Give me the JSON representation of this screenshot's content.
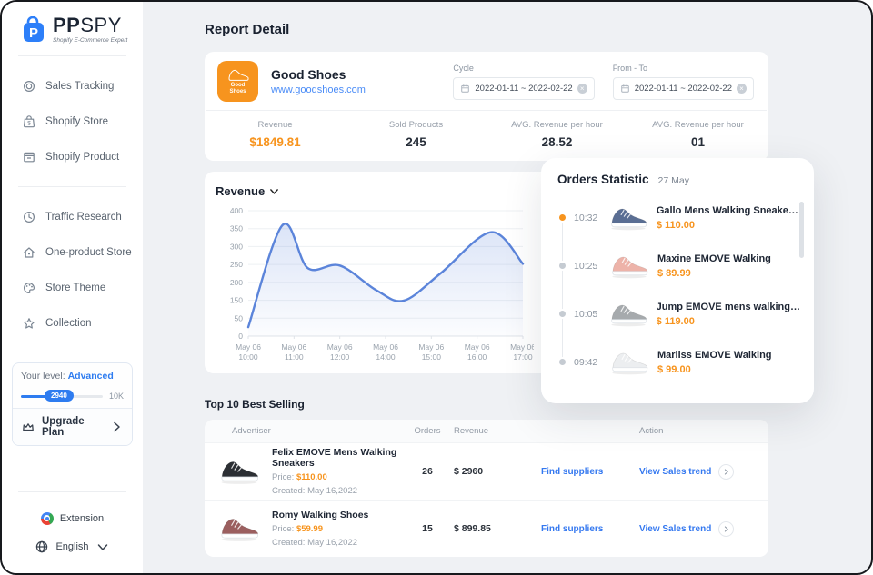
{
  "app": {
    "name_bold": "PP",
    "name_light": "SPY",
    "tagline": "Shopify E-Commerce Expert"
  },
  "colors": {
    "brand_blue": "#2e7cf0",
    "brand_orange": "#f7941e",
    "link_blue": "#3478f0",
    "chart_line": "#5b84da",
    "main_bg": "#eff1f4"
  },
  "sidebar": {
    "menu": [
      {
        "label": "Sales Tracking",
        "icon": "target-icon"
      },
      {
        "label": "Shopify Store",
        "icon": "store-bag-icon"
      },
      {
        "label": "Shopify Product",
        "icon": "product-box-icon"
      },
      {
        "label": "Traffic Research",
        "icon": "clock-icon"
      },
      {
        "label": "One-product Store",
        "icon": "home-icon"
      },
      {
        "label": "Store Theme",
        "icon": "palette-icon"
      },
      {
        "label": "Collection",
        "icon": "star-icon"
      }
    ],
    "level": {
      "label": "Your level:",
      "value": "Advanced",
      "progress_badge": "2940",
      "progress_max": "10K",
      "upgrade_label": "Upgrade Plan"
    },
    "footer": {
      "extension_label": "Extension",
      "language_label": "English"
    }
  },
  "header": {
    "title": "Report Detail"
  },
  "store_card": {
    "store_name": "Good Shoes",
    "store_url": "www.goodshoes.com",
    "logo_line1": "Good",
    "logo_line2": "Shoes",
    "filters": [
      {
        "label": "Cycle",
        "value": "2022-01-11  ~  2022-02-22"
      },
      {
        "label": "From - To",
        "value": "2022-01-11  ~  2022-02-22"
      }
    ],
    "stats": [
      {
        "label": "Revenue",
        "value": "$1849.81"
      },
      {
        "label": "Sold Products",
        "value": "245"
      },
      {
        "label": "AVG. Revenue per hour",
        "value": "28.52"
      },
      {
        "label": "AVG. Revenue per hour",
        "value": "01"
      }
    ]
  },
  "chart_data": {
    "type": "area",
    "title": "Revenue",
    "series_name": "Revenue",
    "x_labels": [
      [
        "May 06",
        "10:00"
      ],
      [
        "May 06",
        "11:00"
      ],
      [
        "May 06",
        "12:00"
      ],
      [
        "May 06",
        "14:00"
      ],
      [
        "May 06",
        "15:00"
      ],
      [
        "May 06",
        "16:00"
      ],
      [
        "May 06",
        "17:00"
      ]
    ],
    "y_ticks": [
      0,
      50,
      150,
      200,
      250,
      300,
      350,
      400
    ],
    "points": [
      [
        0,
        25
      ],
      [
        0.75,
        360
      ],
      [
        1.3,
        240
      ],
      [
        2,
        247
      ],
      [
        2.8,
        178
      ],
      [
        3.4,
        148
      ],
      [
        4.2,
        225
      ],
      [
        5.3,
        340
      ],
      [
        6,
        252
      ]
    ],
    "line_color": "#5b84da",
    "grid": true,
    "legend_position": "none"
  },
  "orders": {
    "title": "Orders Statistic",
    "date": "27 May",
    "items": [
      {
        "time": "10:32",
        "name": "Gallo Mens Walking Sneakers...",
        "price": "$ 110.00",
        "shoe_color": "#5a6e93"
      },
      {
        "time": "10:25",
        "name": "Maxine EMOVE Walking",
        "price": "$ 89.99",
        "shoe_color": "#edb3a9"
      },
      {
        "time": "10:05",
        "name": "Jump EMOVE mens walking s...",
        "price": "$ 119.00",
        "shoe_color": "#a6aaad"
      },
      {
        "time": "09:42",
        "name": "Marliss EMOVE Walking",
        "price": "$ 99.00",
        "shoe_color": "#eceef0"
      }
    ]
  },
  "best_selling": {
    "title": "Top 10 Best Selling",
    "columns": {
      "advertiser": "Advertiser",
      "orders": "Orders",
      "revenue": "Revenue",
      "action": "Action"
    },
    "rows": [
      {
        "name": "Felix EMOVE Mens Walking Sneakers",
        "price_label": "Price:",
        "price": "$110.00",
        "created_label": "Created:",
        "created": "May 16,2022",
        "orders": "26",
        "revenue": "$ 2960",
        "find_label": "Find suppliers",
        "trend_label": "View Sales trend",
        "shoe_color": "#2c2f34"
      },
      {
        "name": "Romy Walking Shoes",
        "price_label": "Price:",
        "price": "$59.99",
        "created_label": "Created:",
        "created": "May 16,2022",
        "orders": "15",
        "revenue": "$ 899.85",
        "find_label": "Find suppliers",
        "trend_label": "View Sales trend",
        "shoe_color": "#9b5f5f"
      }
    ]
  }
}
